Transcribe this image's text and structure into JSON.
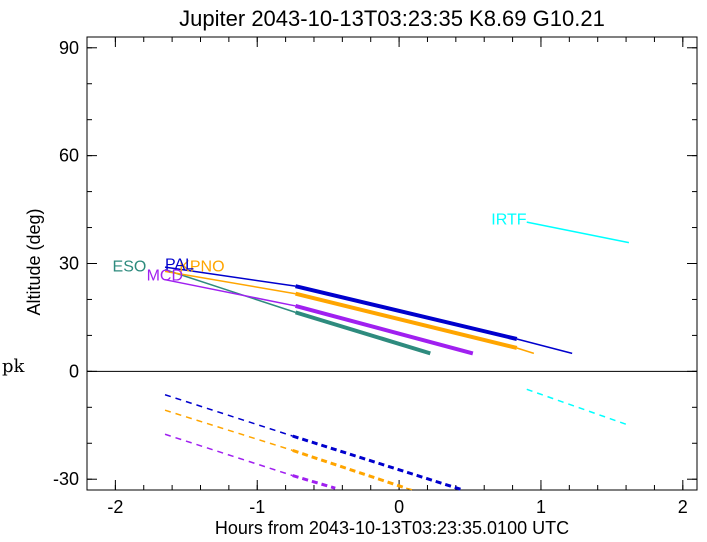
{
  "chart_data": {
    "type": "line",
    "title": "Jupiter 2043-10-13T03:23:35  K8.69  G10.21",
    "xlabel": "Hours from 2043-10-13T03:23:35.0100 UTC",
    "ylabel": "Altitude (deg)",
    "xlim": [
      -2.2,
      2.1
    ],
    "ylim": [
      -33,
      93
    ],
    "xticks": [
      -2,
      -1,
      0,
      1,
      2
    ],
    "yticks": [
      -30,
      0,
      30,
      60,
      90
    ],
    "xtick_labels": [
      "-2",
      "-1",
      "0",
      "1",
      "2"
    ],
    "ytick_labels": [
      "-30",
      "0",
      "30",
      "60",
      "90"
    ],
    "zero_line": 0,
    "grid": false,
    "stray_text": "pk",
    "series": [
      {
        "name": "ESO",
        "color": "#2e8b7e",
        "label_anchor": [
          -2.02,
          29.5
        ],
        "segments": [
          {
            "style": "thin",
            "x": [
              -1.65,
              -0.73
            ],
            "y": [
              28.3,
              16.4
            ]
          },
          {
            "style": "thick",
            "x": [
              -0.73,
              0.22
            ],
            "y": [
              16.4,
              5.0
            ]
          }
        ]
      },
      {
        "name": "MCD",
        "color": "#a020f0",
        "label_anchor": [
          -1.78,
          27.0
        ],
        "segments": [
          {
            "style": "thin",
            "x": [
              -1.65,
              -0.73
            ],
            "y": [
              25.5,
              18.2
            ]
          },
          {
            "style": "thick",
            "x": [
              -0.73,
              0.52
            ],
            "y": [
              18.2,
              5.0
            ]
          },
          {
            "style": "dashed",
            "x": [
              -1.65,
              -0.75
            ],
            "y": [
              -17.5,
              -29.0
            ]
          },
          {
            "style": "dashed-thick",
            "x": [
              -0.75,
              -0.45
            ],
            "y": [
              -29.0,
              -32.5
            ]
          }
        ]
      },
      {
        "name": "KPNO",
        "color": "#ffa500",
        "label_anchor": [
          -1.55,
          29.5
        ],
        "segments": [
          {
            "style": "thin",
            "x": [
              -1.65,
              -0.73
            ],
            "y": [
              27.8,
              21.6
            ]
          },
          {
            "style": "thick",
            "x": [
              -0.73,
              0.83
            ],
            "y": [
              21.6,
              6.5
            ]
          },
          {
            "style": "thin",
            "x": [
              0.83,
              0.95
            ],
            "y": [
              6.5,
              5.0
            ]
          },
          {
            "style": "dashed",
            "x": [
              -1.65,
              -0.75
            ],
            "y": [
              -10.8,
              -22.0
            ]
          },
          {
            "style": "dashed-thick",
            "x": [
              -0.75,
              0.05
            ],
            "y": [
              -22.0,
              -32.5
            ]
          },
          {
            "style": "dashed",
            "x": [
              0.05,
              0.1
            ],
            "y": [
              -32.5,
              -33.0
            ]
          }
        ]
      },
      {
        "name": "PAL",
        "color": "#0000cd",
        "label_anchor": [
          -1.65,
          30.0
        ],
        "segments": [
          {
            "style": "thin",
            "x": [
              -1.65,
              -0.73
            ],
            "y": [
              29.0,
              23.7
            ]
          },
          {
            "style": "thick",
            "x": [
              -0.73,
              0.83
            ],
            "y": [
              23.7,
              9.0
            ]
          },
          {
            "style": "thin",
            "x": [
              0.83,
              1.22
            ],
            "y": [
              9.0,
              5.0
            ]
          },
          {
            "style": "dashed",
            "x": [
              -1.65,
              -0.75
            ],
            "y": [
              -6.5,
              -18.0
            ]
          },
          {
            "style": "dashed-thick",
            "x": [
              -0.75,
              0.45
            ],
            "y": [
              -18.0,
              -33.0
            ]
          }
        ]
      },
      {
        "name": "IRTF",
        "color": "#00ffff",
        "label_anchor": [
          0.65,
          42.5
        ],
        "segments": [
          {
            "style": "thin",
            "x": [
              0.9,
              1.62
            ],
            "y": [
              41.5,
              35.8
            ]
          },
          {
            "style": "dashed",
            "x": [
              0.9,
              1.62
            ],
            "y": [
              -5.0,
              -15.0
            ]
          }
        ]
      }
    ]
  }
}
